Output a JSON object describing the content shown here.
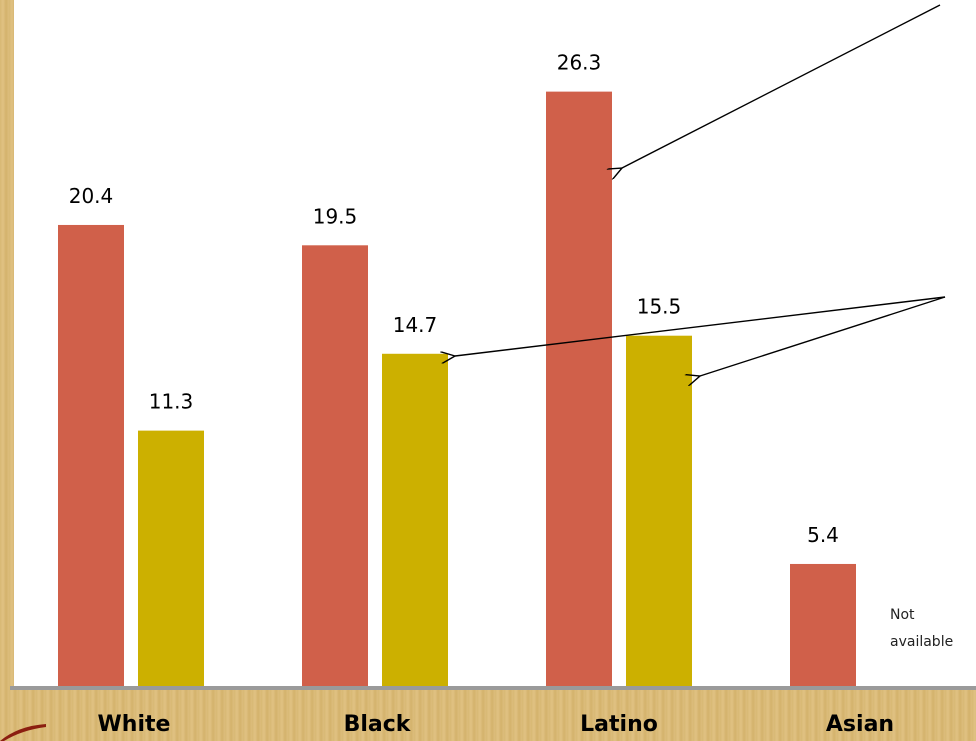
{
  "chart_data": {
    "type": "bar",
    "categories": [
      "White",
      "Black",
      "Latino",
      "Asian"
    ],
    "series": [
      {
        "values": [
          20.4,
          19.5,
          26.3,
          5.4
        ],
        "color": "#d0604a"
      },
      {
        "values": [
          11.3,
          14.7,
          15.5,
          null
        ],
        "color": "#ccb000"
      }
    ],
    "data_labels": [
      [
        "20.4",
        "19.5",
        "26.3",
        "5.4"
      ],
      [
        "11.3",
        "14.7",
        "15.5",
        ""
      ]
    ],
    "annotations": [
      "Not available"
    ],
    "ylim": [
      0,
      30
    ],
    "grid": false,
    "legend": "none"
  }
}
